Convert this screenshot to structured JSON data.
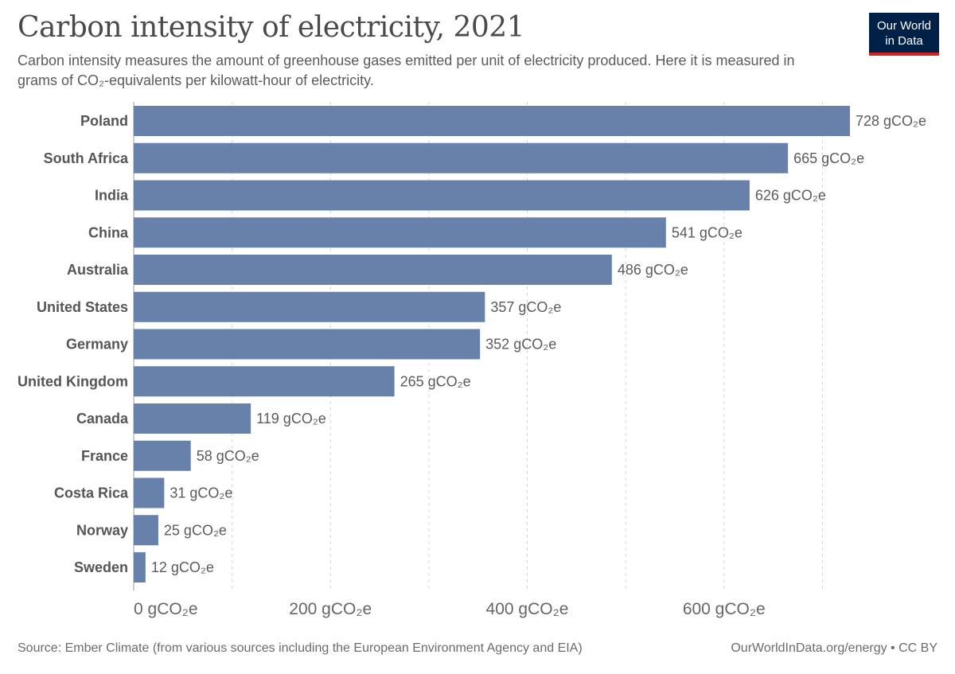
{
  "header": {
    "title": "Carbon intensity of electricity, 2021",
    "subtitle": "Carbon intensity measures the amount of greenhouse gases emitted per unit of electricity produced. Here it is measured in grams of CO₂-equivalents per kilowatt-hour of electricity.",
    "logo_line1": "Our World",
    "logo_line2": "in Data"
  },
  "footer": {
    "source": "Source: Ember Climate (from various sources including the European Environment Agency and EIA)",
    "credit": "OurWorldInData.org/energy • CC BY"
  },
  "colors": {
    "bar": "#6781ab",
    "logo_bg": "#002147",
    "logo_accent": "#ce261e"
  },
  "chart_data": {
    "type": "bar",
    "orientation": "horizontal",
    "categories": [
      "Poland",
      "South Africa",
      "India",
      "China",
      "Australia",
      "United States",
      "Germany",
      "United Kingdom",
      "Canada",
      "France",
      "Costa Rica",
      "Norway",
      "Sweden"
    ],
    "values": [
      728,
      665,
      626,
      541,
      486,
      357,
      352,
      265,
      119,
      58,
      31,
      25,
      12
    ],
    "unit_suffix": " gCO₂e",
    "xlim": [
      0,
      728
    ],
    "xticks": [
      0,
      200,
      400,
      600
    ],
    "xtick_labels": [
      "0 gCO₂e",
      "200 gCO₂e",
      "400 gCO₂e",
      "600 gCO₂e"
    ],
    "grid_values": [
      100,
      200,
      300,
      400,
      500,
      600,
      700
    ],
    "grid": true
  }
}
